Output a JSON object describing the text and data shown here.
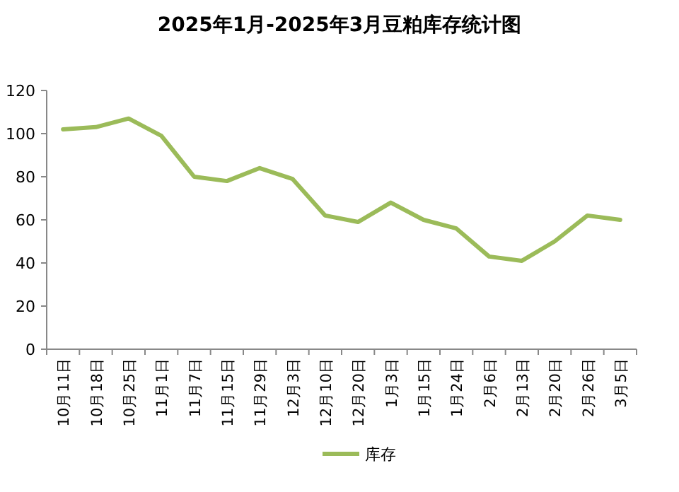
{
  "chart_data": {
    "type": "line",
    "title": "2025年1月-2025年3月豆粕库存统计图",
    "categories": [
      "10月11日",
      "10月18日",
      "10月25日",
      "11月1日",
      "11月7日",
      "11月15日",
      "11月29日",
      "12月3日",
      "12月10日",
      "12月20日",
      "1月3日",
      "1月15日",
      "1月24日",
      "2月6日",
      "2月13日",
      "2月20日",
      "2月26日",
      "3月5日"
    ],
    "series": [
      {
        "name": "库存",
        "color": "#9bbb59",
        "values": [
          102,
          103,
          107,
          99,
          80,
          78,
          84,
          79,
          62,
          59,
          68,
          60,
          56,
          43,
          41,
          50,
          62,
          60
        ]
      }
    ],
    "ylim": [
      0,
      120
    ],
    "yticks": [
      0,
      20,
      40,
      60,
      80,
      100,
      120
    ],
    "grid": false,
    "legend": "bottom",
    "marker": "none",
    "line_style": "solid"
  }
}
